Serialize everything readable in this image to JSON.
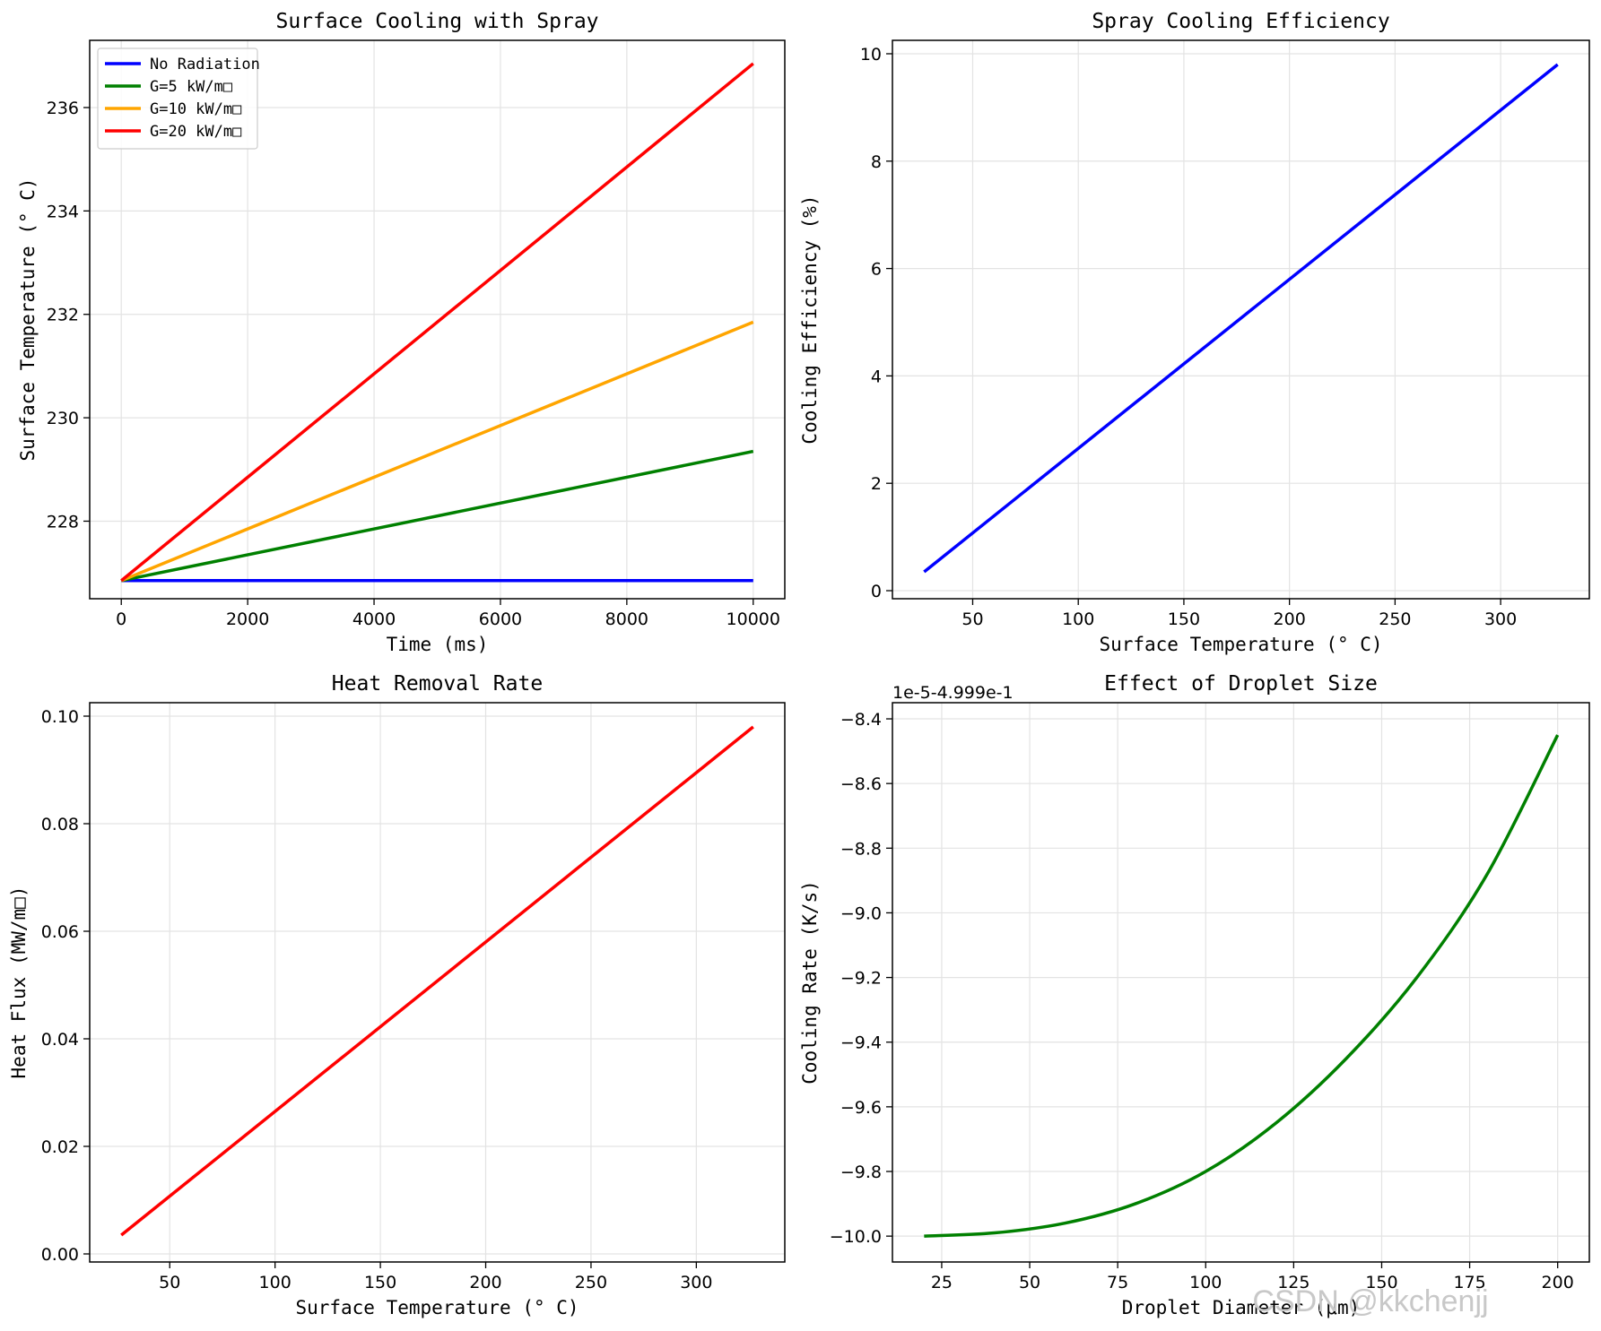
{
  "watermark": "CSDN @kkchenjj",
  "chart_data": [
    {
      "type": "line",
      "title": "Surface Cooling with Spray",
      "xlabel": "Time (ms)",
      "ylabel": "Surface Temperature (° C)",
      "xlim": [
        -500,
        10500
      ],
      "ylim": [
        226.5,
        237.3
      ],
      "xticks": [
        0,
        2000,
        4000,
        6000,
        8000,
        10000
      ],
      "yticks": [
        228,
        230,
        232,
        234,
        236
      ],
      "grid": true,
      "legend": "top-left",
      "series": [
        {
          "name": "No Radiation",
          "color": "#0000ff",
          "x": [
            0,
            10000
          ],
          "y": [
            226.85,
            226.85
          ]
        },
        {
          "name": "G=5 kW/m□",
          "color": "#008000",
          "x": [
            0,
            10000
          ],
          "y": [
            226.85,
            229.35
          ]
        },
        {
          "name": "G=10 kW/m□",
          "color": "#ffa500",
          "x": [
            0,
            10000
          ],
          "y": [
            226.85,
            231.85
          ]
        },
        {
          "name": "G=20 kW/m□",
          "color": "#ff0000",
          "x": [
            0,
            10000
          ],
          "y": [
            226.85,
            236.85
          ]
        }
      ]
    },
    {
      "type": "line",
      "title": "Spray Cooling Efficiency",
      "xlabel": "Surface Temperature (° C)",
      "ylabel": "Cooling Efficiency (%)",
      "xlim": [
        12,
        342
      ],
      "ylim": [
        -0.15,
        10.25
      ],
      "xticks": [
        50,
        100,
        150,
        200,
        250,
        300
      ],
      "yticks": [
        0,
        2,
        4,
        6,
        8,
        10
      ],
      "grid": true,
      "series": [
        {
          "color": "#0000ff",
          "x": [
            27,
            327
          ],
          "y": [
            0.35,
            9.8
          ]
        }
      ]
    },
    {
      "type": "line",
      "title": "Heat Removal Rate",
      "xlabel": "Surface Temperature (° C)",
      "ylabel": "Heat Flux (MW/m□)",
      "xlim": [
        12,
        342
      ],
      "ylim": [
        -0.0015,
        0.1025
      ],
      "xticks": [
        50,
        100,
        150,
        200,
        250,
        300
      ],
      "yticks": [
        0.0,
        0.02,
        0.04,
        0.06,
        0.08,
        0.1
      ],
      "ytick_labels": [
        "0.00",
        "0.02",
        "0.04",
        "0.06",
        "0.08",
        "0.10"
      ],
      "grid": true,
      "series": [
        {
          "color": "#ff0000",
          "x": [
            27,
            327
          ],
          "y": [
            0.0035,
            0.098
          ]
        }
      ]
    },
    {
      "type": "line",
      "title": "Effect of Droplet Size",
      "xlabel": "Droplet Diameter (μm)",
      "ylabel": "Cooling Rate (K/s)",
      "offset_text": "1e-5-4.999e-1",
      "xlim": [
        11,
        209
      ],
      "ylim": [
        -10.08,
        -8.35
      ],
      "xticks": [
        25,
        50,
        75,
        100,
        125,
        150,
        175,
        200
      ],
      "yticks": [
        -10.0,
        -9.8,
        -9.6,
        -9.4,
        -9.2,
        -9.0,
        -8.8,
        -8.6,
        -8.4
      ],
      "ytick_labels": [
        "−10.0",
        "−9.8",
        "−9.6",
        "−9.4",
        "−9.2",
        "−9.0",
        "−8.8",
        "−8.6",
        "−8.4"
      ],
      "grid": true,
      "series": [
        {
          "color": "#008000",
          "x": [
            20,
            40,
            60,
            80,
            100,
            120,
            140,
            160,
            180,
            200
          ],
          "y": [
            -10.0,
            -9.99,
            -9.96,
            -9.9,
            -9.8,
            -9.65,
            -9.45,
            -9.2,
            -8.88,
            -8.45
          ]
        }
      ]
    }
  ]
}
